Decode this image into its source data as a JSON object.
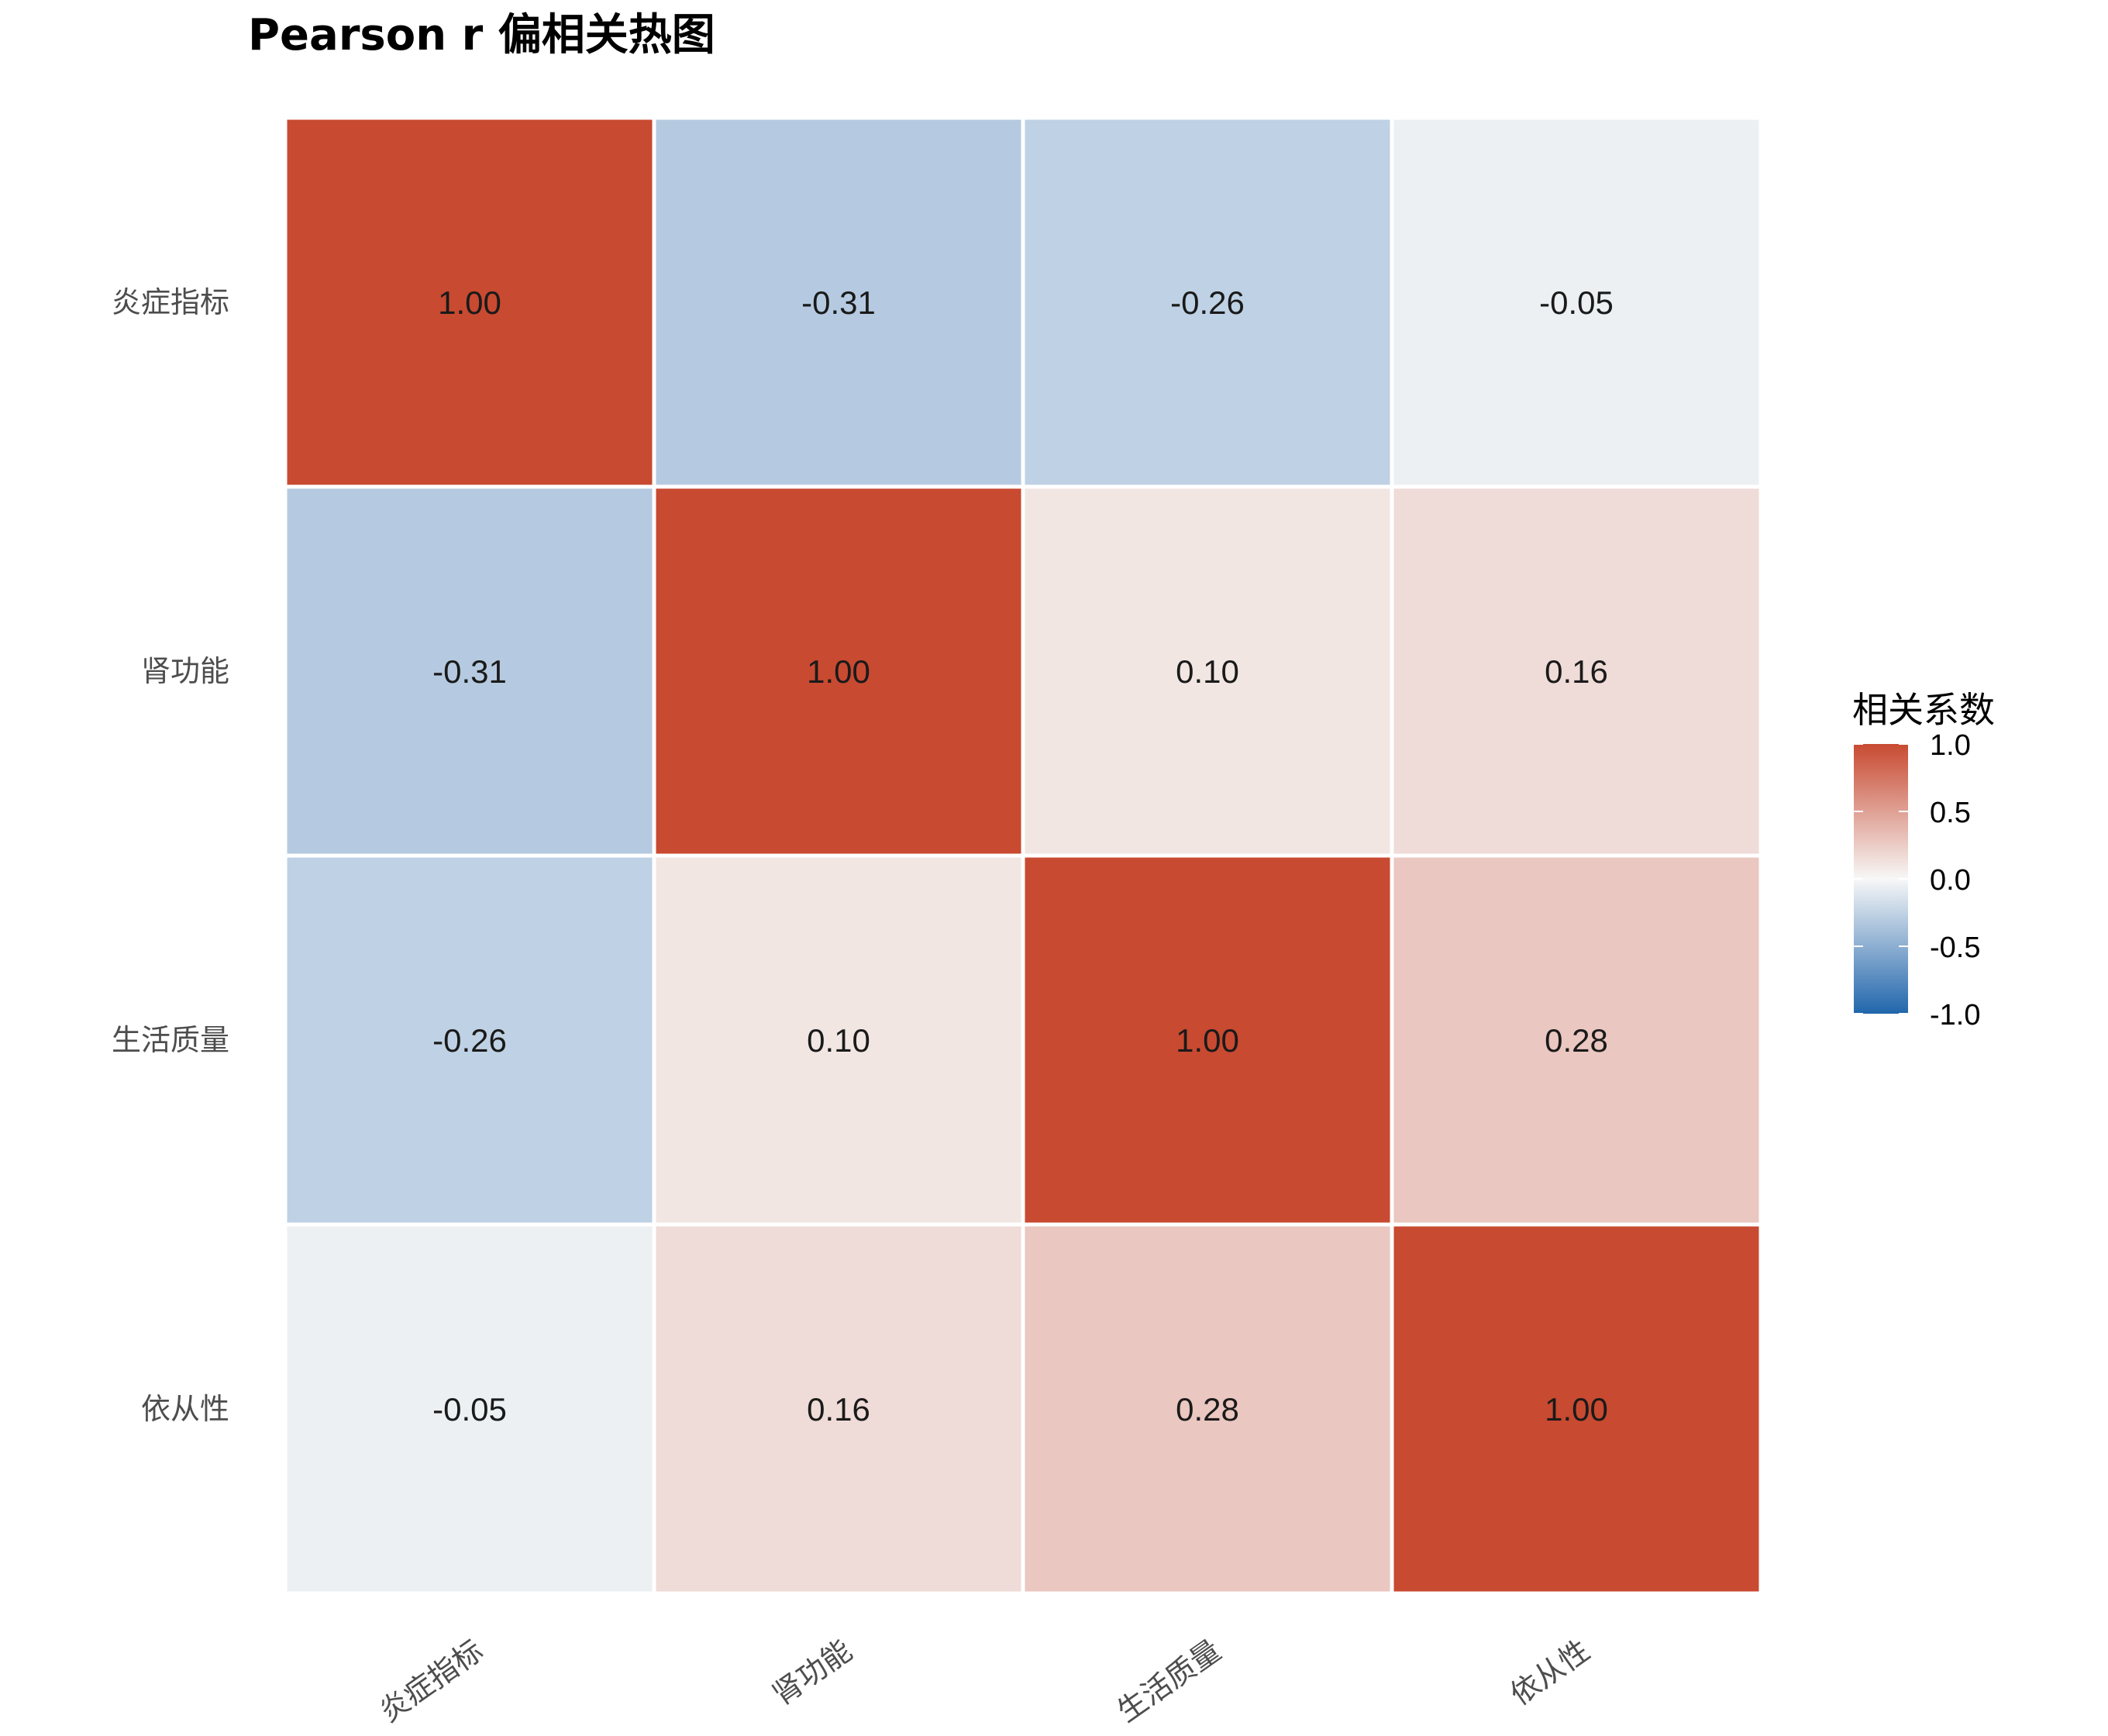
{
  "chart_data": {
    "type": "heatmap",
    "title": "Pearson r 偏相关热图",
    "xlabel": "",
    "ylabel": "",
    "x_categories": [
      "炎症指标",
      "肾功能",
      "生活质量",
      "依从性"
    ],
    "y_categories": [
      "炎症指标",
      "肾功能",
      "生活质量",
      "依从性"
    ],
    "values": [
      [
        1.0,
        -0.31,
        -0.26,
        -0.05
      ],
      [
        -0.31,
        1.0,
        0.1,
        0.16
      ],
      [
        -0.26,
        0.1,
        1.0,
        0.28
      ],
      [
        -0.05,
        0.16,
        0.28,
        1.0
      ]
    ],
    "value_format": "2 decimals",
    "legend": {
      "title": "相关系数",
      "placement": "right",
      "ticks": [
        1.0,
        0.5,
        0.0,
        -0.5,
        -1.0
      ],
      "tick_labels": [
        "1.0",
        "0.5",
        "0.0",
        "-0.5",
        "-1.0"
      ],
      "range": [
        -1,
        1
      ]
    },
    "colors": {
      "low": "#2166AC",
      "mid": "#F7F7F7",
      "high": "#C84A31",
      "cell_border": "#FFFFFF"
    },
    "grid": false
  }
}
